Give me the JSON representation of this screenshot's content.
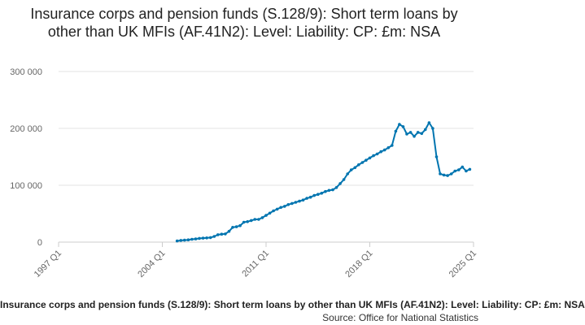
{
  "chart_data": {
    "type": "line",
    "title": "Insurance corps and pension funds (S.128/9): Short term loans by other than UK MFIs (AF.41N2): Level: Liability: CP: £m: NSA",
    "xlabel": "",
    "ylabel": "",
    "x_range": [
      "1997 Q1",
      "2025 Q1"
    ],
    "ylim": [
      0,
      300000
    ],
    "y_ticks": [
      "0",
      "100 000",
      "200 000",
      "300 000"
    ],
    "x_ticks": [
      "1997 Q1",
      "2004 Q1",
      "2011 Q1",
      "2018 Q1",
      "2025 Q1"
    ],
    "grid": "horizontal",
    "series": [
      {
        "color": "#0075b0",
        "values": [
          [
            "2005 Q1",
            2000
          ],
          [
            "2005 Q2",
            3000
          ],
          [
            "2005 Q3",
            3500
          ],
          [
            "2005 Q4",
            4000
          ],
          [
            "2006 Q1",
            5000
          ],
          [
            "2006 Q2",
            5500
          ],
          [
            "2006 Q3",
            6500
          ],
          [
            "2006 Q4",
            7000
          ],
          [
            "2007 Q1",
            7500
          ],
          [
            "2007 Q2",
            8000
          ],
          [
            "2007 Q3",
            10000
          ],
          [
            "2007 Q4",
            13000
          ],
          [
            "2008 Q1",
            14000
          ],
          [
            "2008 Q2",
            14500
          ],
          [
            "2008 Q3",
            19000
          ],
          [
            "2008 Q4",
            26000
          ],
          [
            "2009 Q1",
            27000
          ],
          [
            "2009 Q2",
            29000
          ],
          [
            "2009 Q3",
            35000
          ],
          [
            "2009 Q4",
            36000
          ],
          [
            "2010 Q1",
            38000
          ],
          [
            "2010 Q2",
            40000
          ],
          [
            "2010 Q3",
            40000
          ],
          [
            "2010 Q4",
            43000
          ],
          [
            "2011 Q1",
            47000
          ],
          [
            "2011 Q2",
            51000
          ],
          [
            "2011 Q3",
            55000
          ],
          [
            "2011 Q4",
            58000
          ],
          [
            "2012 Q1",
            61000
          ],
          [
            "2012 Q2",
            63000
          ],
          [
            "2012 Q3",
            66000
          ],
          [
            "2012 Q4",
            68000
          ],
          [
            "2013 Q1",
            70000
          ],
          [
            "2013 Q2",
            72000
          ],
          [
            "2013 Q3",
            74000
          ],
          [
            "2013 Q4",
            77000
          ],
          [
            "2014 Q1",
            79000
          ],
          [
            "2014 Q2",
            82000
          ],
          [
            "2014 Q3",
            84000
          ],
          [
            "2014 Q4",
            86000
          ],
          [
            "2015 Q1",
            89000
          ],
          [
            "2015 Q2",
            91000
          ],
          [
            "2015 Q3",
            92000
          ],
          [
            "2015 Q4",
            96000
          ],
          [
            "2016 Q1",
            103000
          ],
          [
            "2016 Q2",
            110000
          ],
          [
            "2016 Q3",
            120000
          ],
          [
            "2016 Q4",
            127000
          ],
          [
            "2017 Q1",
            131000
          ],
          [
            "2017 Q2",
            136000
          ],
          [
            "2017 Q3",
            140000
          ],
          [
            "2017 Q4",
            144000
          ],
          [
            "2018 Q1",
            148000
          ],
          [
            "2018 Q2",
            152000
          ],
          [
            "2018 Q3",
            155000
          ],
          [
            "2018 Q4",
            159000
          ],
          [
            "2019 Q1",
            162000
          ],
          [
            "2019 Q2",
            166000
          ],
          [
            "2019 Q3",
            170000
          ],
          [
            "2019 Q4",
            195000
          ],
          [
            "2020 Q1",
            207000
          ],
          [
            "2020 Q2",
            203000
          ],
          [
            "2020 Q3",
            190000
          ],
          [
            "2020 Q4",
            193000
          ],
          [
            "2021 Q1",
            186000
          ],
          [
            "2021 Q2",
            193000
          ],
          [
            "2021 Q3",
            191000
          ],
          [
            "2021 Q4",
            198000
          ],
          [
            "2022 Q1",
            210000
          ],
          [
            "2022 Q2",
            200000
          ],
          [
            "2022 Q3",
            150000
          ],
          [
            "2022 Q4",
            120000
          ],
          [
            "2023 Q1",
            118000
          ],
          [
            "2023 Q2",
            117000
          ],
          [
            "2023 Q3",
            120000
          ],
          [
            "2023 Q4",
            125000
          ],
          [
            "2024 Q1",
            127000
          ],
          [
            "2024 Q2",
            132000
          ],
          [
            "2024 Q3",
            125000
          ],
          [
            "2024 Q4",
            128000
          ]
        ]
      }
    ]
  },
  "footer": {
    "title": "Insurance corps and pension funds (S.128/9): Short term loans by other than UK MFIs (AF.41N2): Level: Liability: CP: £m: NSA",
    "source": "Source: Office for National Statistics"
  }
}
